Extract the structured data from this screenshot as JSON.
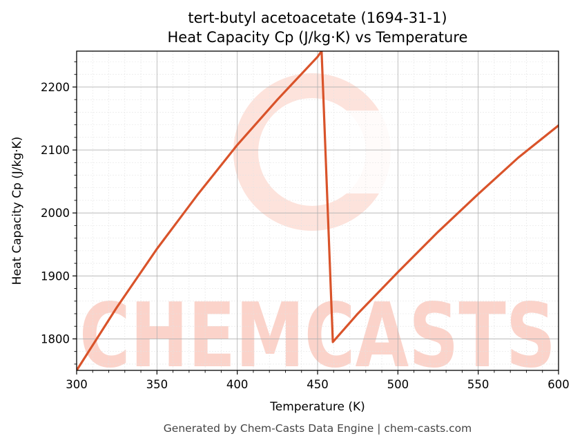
{
  "chart_data": {
    "type": "line",
    "title": "tert-butyl acetoacetate (1694-31-1)",
    "subtitle": "Heat Capacity Cp (J/kg·K) vs Temperature",
    "xlabel": "Temperature (K)",
    "ylabel": "Heat Capacity Cp (J/kg·K)",
    "xlim": [
      300,
      600
    ],
    "ylim": [
      1750,
      2257
    ],
    "xticks": [
      300,
      350,
      400,
      450,
      500,
      550,
      600
    ],
    "yticks": [
      1800,
      1900,
      2000,
      2100,
      2200
    ],
    "grid": true,
    "line_color": "#d9532a",
    "series": [
      {
        "x": [
          300,
          325,
          350,
          375,
          400,
          425,
          450,
          452.5,
          459.5,
          475,
          500,
          525,
          550,
          575,
          600
        ],
        "y": [
          1750,
          1850,
          1943,
          2028,
          2108,
          2180,
          2248,
          2257,
          1795,
          1840,
          1906,
          1970,
          2030,
          2088,
          2139
        ]
      }
    ]
  },
  "watermark": "CHEMCASTS",
  "footer": "Generated by Chem-Casts Data Engine | chem-casts.com"
}
